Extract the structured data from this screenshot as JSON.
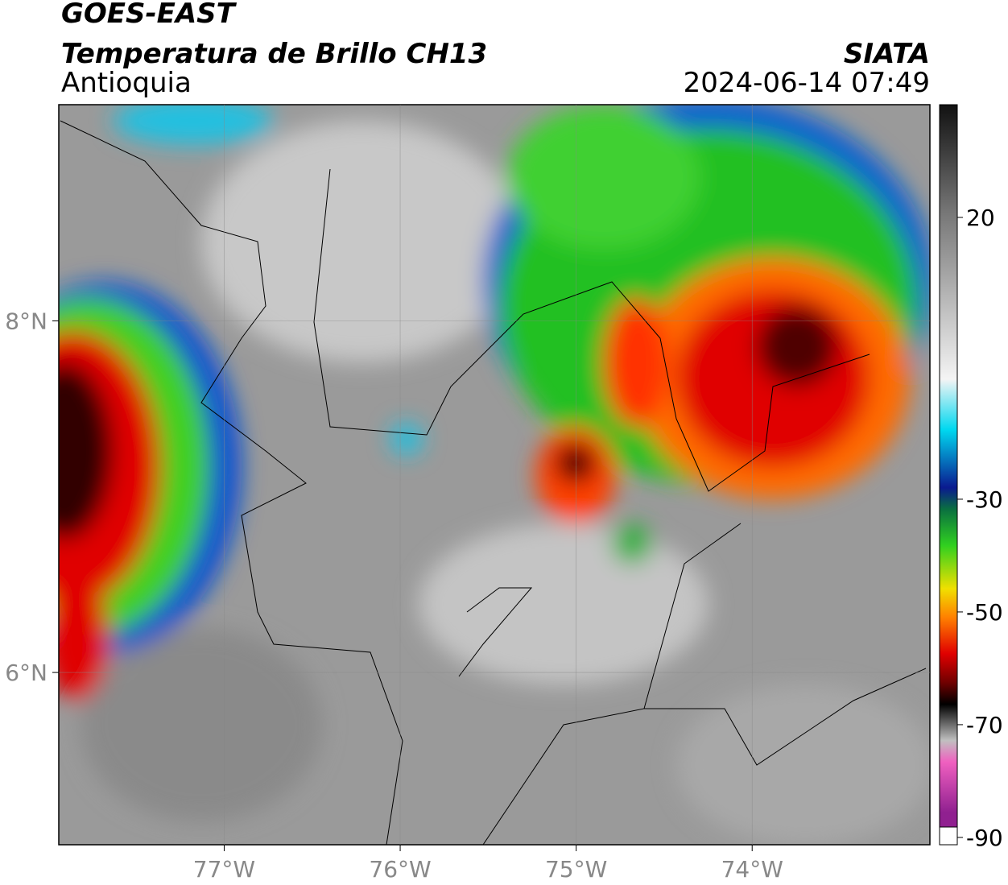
{
  "header": {
    "title": "GOES-EAST",
    "subtitle": "Temperatura de Brillo CH13",
    "region": "Antioquia",
    "source": "SIATA",
    "datetime": "2024-06-14 07:49"
  },
  "map": {
    "xlim": [
      -77.94,
      -72.99
    ],
    "ylim": [
      5.02,
      9.23
    ],
    "xticks": [
      {
        "value": -77,
        "label": "77°W"
      },
      {
        "value": -76,
        "label": "76°W"
      },
      {
        "value": -75,
        "label": "75°W"
      },
      {
        "value": -74,
        "label": "74°W"
      }
    ],
    "yticks": [
      {
        "value": 8,
        "label": "8°N"
      },
      {
        "value": 6,
        "label": "6°N"
      }
    ]
  },
  "colorbar": {
    "clim": [
      -91.3,
      40
    ],
    "ticks": [
      20,
      -30,
      -50,
      -70,
      -90
    ]
  }
}
